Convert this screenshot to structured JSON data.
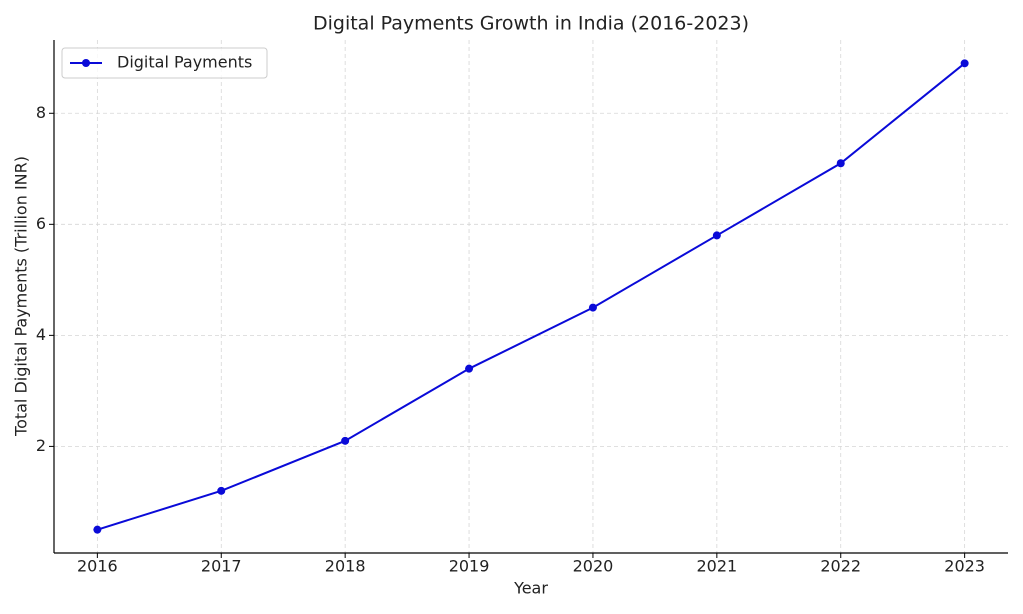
{
  "chart_data": {
    "type": "line",
    "title": "Digital Payments Growth in India (2016-2023)",
    "x_label": "Year",
    "y_label": "Total Digital Payments (Trillion INR)",
    "x": [
      2016,
      2017,
      2018,
      2019,
      2020,
      2021,
      2022,
      2023
    ],
    "series": [
      {
        "name": "Digital Payments",
        "color": "#0a0ad8",
        "values": [
          0.5,
          1.2,
          2.1,
          3.4,
          4.5,
          5.8,
          7.1,
          8.9
        ]
      }
    ],
    "xlim": [
      2015.65,
      2023.35
    ],
    "xticks": [
      2016,
      2017,
      2018,
      2019,
      2020,
      2021,
      2022,
      2023
    ],
    "ylim": [
      0.08,
      9.32
    ],
    "yticks": [
      2,
      4,
      6,
      8
    ],
    "grid": true,
    "legend": "upper-left"
  }
}
